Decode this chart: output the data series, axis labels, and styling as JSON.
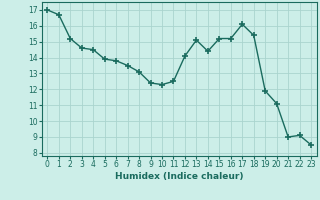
{
  "x": [
    0,
    1,
    2,
    3,
    4,
    5,
    6,
    7,
    8,
    9,
    10,
    11,
    12,
    13,
    14,
    15,
    16,
    17,
    18,
    19,
    20,
    21,
    22,
    23
  ],
  "y": [
    17.0,
    16.7,
    15.2,
    14.6,
    14.5,
    13.9,
    13.8,
    13.5,
    13.1,
    12.4,
    12.3,
    12.5,
    14.1,
    15.1,
    14.4,
    15.2,
    15.2,
    16.1,
    15.4,
    11.9,
    11.1,
    9.0,
    9.1,
    8.5
  ],
  "xlabel": "Humidex (Indice chaleur)",
  "ylim": [
    7.8,
    17.5
  ],
  "xlim": [
    -0.5,
    23.5
  ],
  "bg_color": "#cceee8",
  "grid_color": "#aad4ce",
  "line_color": "#1a6b5e",
  "marker_color": "#1a6b5e",
  "tick_color": "#1a6b5e",
  "label_color": "#1a6b5e",
  "yticks": [
    8,
    9,
    10,
    11,
    12,
    13,
    14,
    15,
    16,
    17
  ],
  "xticks": [
    0,
    1,
    2,
    3,
    4,
    5,
    6,
    7,
    8,
    9,
    10,
    11,
    12,
    13,
    14,
    15,
    16,
    17,
    18,
    19,
    20,
    21,
    22,
    23
  ]
}
